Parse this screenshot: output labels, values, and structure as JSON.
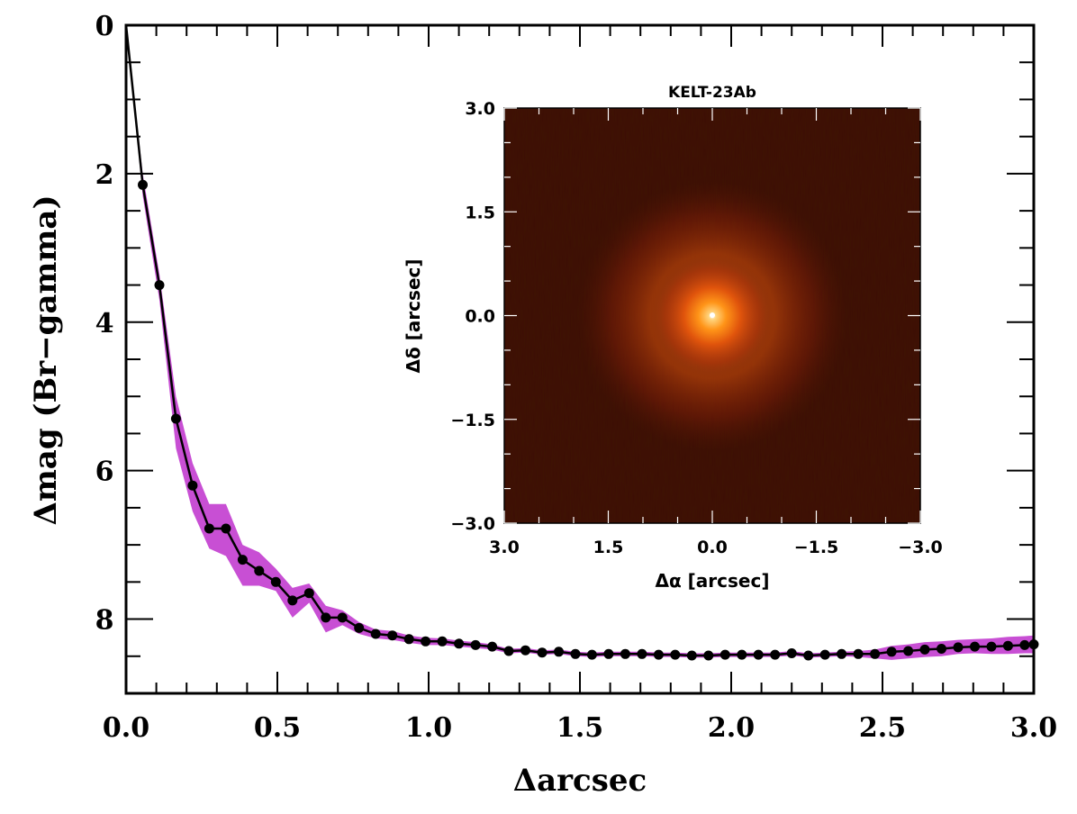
{
  "chart_data": [
    {
      "type": "line",
      "xlabel": "Δarcsec",
      "ylabel": "Δmag (Br−gamma)",
      "xlim": [
        0.0,
        3.0
      ],
      "ylim": [
        9.0,
        0.0
      ],
      "y_inverted": true,
      "x_ticks": [
        "0.0",
        "0.5",
        "1.0",
        "1.5",
        "2.0",
        "2.5",
        "3.0"
      ],
      "y_ticks": [
        "0",
        "2",
        "4",
        "6",
        "8"
      ],
      "grid": false,
      "band_color": "#c84fd4",
      "line_color": "#000000",
      "series": [
        {
          "x": [
            0.0,
            0.055,
            0.11,
            0.165,
            0.22,
            0.275,
            0.33,
            0.385,
            0.44,
            0.495,
            0.55,
            0.605,
            0.66,
            0.715,
            0.77,
            0.825,
            0.88,
            0.935,
            0.99,
            1.045,
            1.1,
            1.155,
            1.21,
            1.265,
            1.32,
            1.375,
            1.43,
            1.485,
            1.54,
            1.595,
            1.65,
            1.705,
            1.76,
            1.815,
            1.87,
            1.925,
            1.98,
            2.035,
            2.09,
            2.145,
            2.2,
            2.255,
            2.31,
            2.365,
            2.42,
            2.475,
            2.53,
            2.585,
            2.64,
            2.695,
            2.75,
            2.805,
            2.86,
            2.915,
            2.97,
            3.0
          ],
          "y": [
            0.0,
            2.15,
            3.5,
            5.3,
            6.2,
            6.78,
            6.78,
            7.2,
            7.35,
            7.5,
            7.75,
            7.65,
            7.98,
            7.98,
            8.12,
            8.2,
            8.22,
            8.27,
            8.3,
            8.3,
            8.33,
            8.35,
            8.37,
            8.43,
            8.42,
            8.45,
            8.44,
            8.47,
            8.48,
            8.47,
            8.47,
            8.47,
            8.48,
            8.48,
            8.49,
            8.49,
            8.48,
            8.48,
            8.48,
            8.48,
            8.46,
            8.49,
            8.48,
            8.47,
            8.47,
            8.47,
            8.44,
            8.43,
            8.41,
            8.4,
            8.38,
            8.37,
            8.37,
            8.36,
            8.35,
            8.34
          ],
          "band_low": [
            0.0,
            2.0,
            3.35,
            5.0,
            5.9,
            6.45,
            6.45,
            7.0,
            7.1,
            7.32,
            7.58,
            7.52,
            7.82,
            7.88,
            8.04,
            8.14,
            8.16,
            8.22,
            8.25,
            8.26,
            8.29,
            8.31,
            8.34,
            8.4,
            8.39,
            8.42,
            8.41,
            8.44,
            8.45,
            8.44,
            8.44,
            8.44,
            8.45,
            8.45,
            8.46,
            8.46,
            8.45,
            8.45,
            8.45,
            8.45,
            8.43,
            8.46,
            8.45,
            8.44,
            8.43,
            8.41,
            8.36,
            8.34,
            8.31,
            8.3,
            8.28,
            8.27,
            8.26,
            8.24,
            8.23,
            8.22
          ],
          "band_high": [
            0.0,
            2.3,
            3.7,
            5.7,
            6.55,
            7.05,
            7.15,
            7.55,
            7.55,
            7.62,
            7.98,
            7.78,
            8.18,
            8.08,
            8.2,
            8.26,
            8.28,
            8.32,
            8.35,
            8.35,
            8.37,
            8.39,
            8.41,
            8.46,
            8.45,
            8.48,
            8.47,
            8.5,
            8.51,
            8.5,
            8.5,
            8.5,
            8.51,
            8.51,
            8.52,
            8.52,
            8.51,
            8.51,
            8.51,
            8.51,
            8.49,
            8.52,
            8.51,
            8.5,
            8.51,
            8.53,
            8.55,
            8.53,
            8.51,
            8.5,
            8.47,
            8.46,
            8.47,
            8.47,
            8.46,
            8.46
          ]
        }
      ]
    },
    {
      "type": "heatmap",
      "title": "KELT-23Ab",
      "xlabel": "Δα [arcsec]",
      "ylabel": "Δδ [arcsec]",
      "xlim": [
        3.0,
        -3.0
      ],
      "ylim": [
        -3.0,
        3.0
      ],
      "x_ticks": [
        "3.0",
        "1.5",
        "0.0",
        "−1.5",
        "−3.0"
      ],
      "y_ticks": [
        "3.0",
        "1.5",
        "0.0",
        "−1.5",
        "−3.0"
      ],
      "source_position": [
        0.0,
        0.0
      ],
      "colors": {
        "background": "#3d0d05",
        "halo": "#c83008",
        "core": "#ff9a1a",
        "peak": "#ffffff"
      }
    }
  ]
}
